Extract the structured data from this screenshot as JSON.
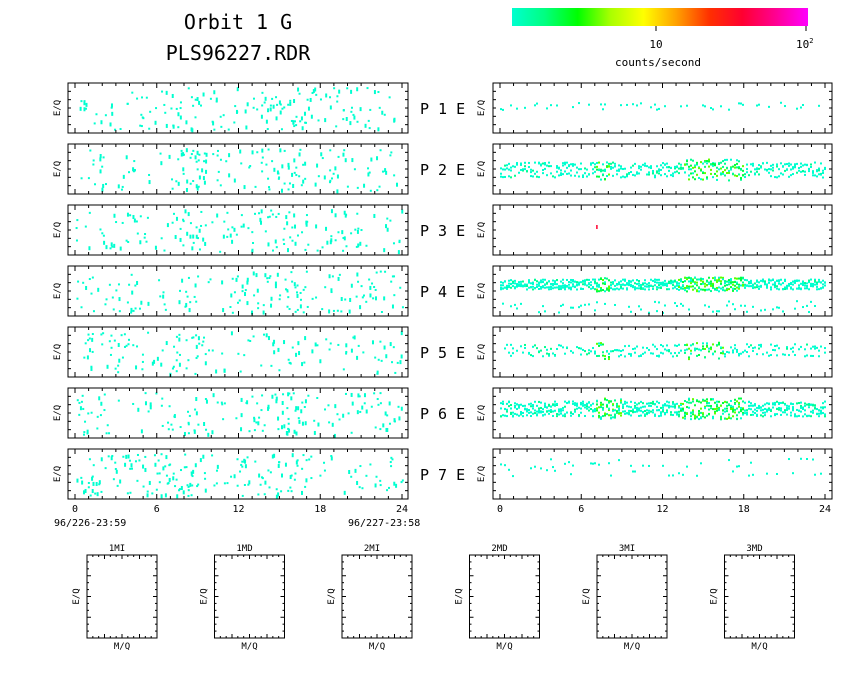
{
  "header": {
    "title_line1": "Orbit 1 G",
    "title_line2": "PLS96227.RDR"
  },
  "colorbar": {
    "label": "counts/second",
    "tick_10": "10",
    "tick_100_base": "10",
    "tick_100_exp": "2",
    "colors": [
      "#00ffd0",
      "#00ff80",
      "#00ff00",
      "#aaff00",
      "#ffff00",
      "#ffa000",
      "#ff3000",
      "#ff0030",
      "#ff0090",
      "#ff00ff"
    ]
  },
  "panels": {
    "row_labels": [
      "P 1 E",
      "P 2 E",
      "P 3 E",
      "P 4 E",
      "P 5 E",
      "P 6 E",
      "P 7 E"
    ],
    "ylabel": "E/Q"
  },
  "time_axis": {
    "ticks": [
      "0",
      "6",
      "12",
      "18",
      "24"
    ],
    "start_label": "96/226-23:59",
    "end_label": "96/227-23:58"
  },
  "mass_panels": {
    "titles": [
      "1MI",
      "1MD",
      "2MI",
      "2MD",
      "3MI",
      "3MD"
    ],
    "ylabel": "E/Q",
    "xlabel": "M/Q"
  },
  "chart_data": {
    "type": "heatmap",
    "title": "Orbit 1 G PLS96227.RDR",
    "xlabel": "",
    "ylabel": "E/Q",
    "x_range_hours": [
      0,
      24
    ],
    "x_ticks": [
      0,
      6,
      12,
      18,
      24
    ],
    "color_scale": {
      "label": "counts/second",
      "scale": "log",
      "range": [
        1,
        100
      ]
    },
    "left_column": [
      {
        "row": "P 1",
        "activity_hours": [
          [
            0,
            24
          ]
        ],
        "intensity": "low",
        "dense_hours": [
          [
            7,
            9
          ],
          [
            13.5,
            16
          ]
        ]
      },
      {
        "row": "P 2",
        "activity_hours": [
          [
            0,
            24
          ]
        ],
        "intensity": "low",
        "dense_hours": [
          [
            7,
            9.5
          ],
          [
            13.5,
            17
          ]
        ]
      },
      {
        "row": "P 3",
        "activity_hours": [
          [
            0,
            24
          ]
        ],
        "intensity": "low",
        "dense_hours": [
          [
            7,
            9.5
          ],
          [
            13.5,
            17
          ]
        ]
      },
      {
        "row": "P 4",
        "activity_hours": [
          [
            0,
            24
          ]
        ],
        "intensity": "low",
        "dense_hours": [
          [
            13,
            17
          ]
        ]
      },
      {
        "row": "P 5",
        "activity_hours": [
          [
            0,
            24
          ]
        ],
        "intensity": "low",
        "dense_hours": [
          [
            7,
            9
          ]
        ]
      },
      {
        "row": "P 6",
        "activity_hours": [
          [
            0,
            24
          ]
        ],
        "intensity": "low",
        "dense_hours": [
          [
            7,
            9.5
          ],
          [
            13,
            17
          ]
        ]
      },
      {
        "row": "P 7",
        "activity_hours": [
          [
            0,
            24
          ]
        ],
        "intensity": "low",
        "dense_hours": [
          [
            3,
            9
          ],
          [
            12.5,
            17.5
          ]
        ]
      }
    ],
    "right_column": [
      {
        "row": "P 1",
        "band_level": 0.45,
        "band_width": 0.15,
        "density": 0.35,
        "peak": "low"
      },
      {
        "row": "P 2",
        "band_level": 0.5,
        "band_width": 0.3,
        "density": 0.85,
        "peak": "medium",
        "enhanced_hours": [
          [
            7,
            8
          ],
          [
            13.5,
            18
          ]
        ]
      },
      {
        "row": "P 3",
        "band_level": 0.4,
        "band_width": 0.05,
        "density": 0.0,
        "peak": "none",
        "isolated_point_hour": 7.1
      },
      {
        "row": "P 4",
        "band_level": 0.35,
        "band_width": 0.2,
        "density": 0.95,
        "peak": "medium",
        "enhanced_hours": [
          [
            7,
            8
          ],
          [
            13,
            18
          ]
        ],
        "secondary_band_level": 0.8
      },
      {
        "row": "P 5",
        "band_level": 0.45,
        "band_width": 0.25,
        "density": 0.6,
        "peak": "medium",
        "enhanced_hours": [
          [
            7,
            8
          ],
          [
            13.5,
            16.5
          ]
        ]
      },
      {
        "row": "P 6",
        "band_level": 0.4,
        "band_width": 0.3,
        "density": 0.95,
        "peak": "medium",
        "enhanced_hours": [
          [
            7,
            9
          ],
          [
            13,
            18
          ]
        ]
      },
      {
        "row": "P 7",
        "band_level": 0.35,
        "band_width": 0.35,
        "density": 0.3,
        "peak": "low"
      }
    ]
  }
}
